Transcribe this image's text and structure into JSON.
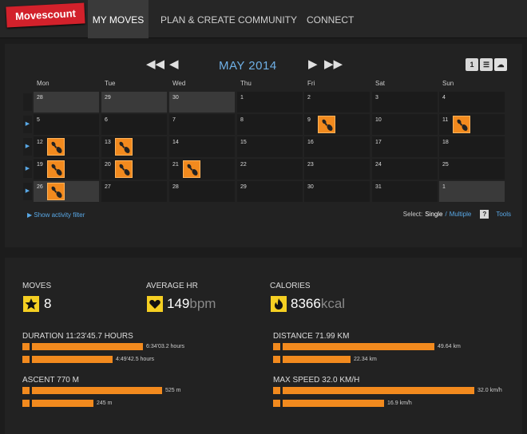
{
  "logo": "Movescount",
  "nav": [
    {
      "label": "MY MOVES",
      "active": true
    },
    {
      "label": "PLAN & CREATE",
      "active": false
    },
    {
      "label": "COMMUNITY",
      "active": false
    },
    {
      "label": "CONNECT",
      "active": false
    }
  ],
  "calendar": {
    "month_title": "MAY 2014",
    "day_headers": [
      "Mon",
      "Tue",
      "Wed",
      "Thu",
      "Fri",
      "Sat",
      "Sun"
    ],
    "weeks": [
      [
        {
          "n": "28",
          "o": true
        },
        {
          "n": "29",
          "o": true
        },
        {
          "n": "30",
          "o": true
        },
        {
          "n": "1"
        },
        {
          "n": "2"
        },
        {
          "n": "3"
        },
        {
          "n": "4"
        }
      ],
      [
        {
          "n": "5"
        },
        {
          "n": "6"
        },
        {
          "n": "7"
        },
        {
          "n": "8"
        },
        {
          "n": "9",
          "m": true
        },
        {
          "n": "10"
        },
        {
          "n": "11",
          "m": true
        }
      ],
      [
        {
          "n": "12",
          "m": true
        },
        {
          "n": "13",
          "m": true
        },
        {
          "n": "14"
        },
        {
          "n": "15"
        },
        {
          "n": "16"
        },
        {
          "n": "17"
        },
        {
          "n": "18"
        }
      ],
      [
        {
          "n": "19",
          "m": true
        },
        {
          "n": "20",
          "m": true
        },
        {
          "n": "21",
          "m": true
        },
        {
          "n": "22"
        },
        {
          "n": "23"
        },
        {
          "n": "24"
        },
        {
          "n": "25"
        }
      ],
      [
        {
          "n": "26",
          "m": true,
          "o": true
        },
        {
          "n": "27"
        },
        {
          "n": "28"
        },
        {
          "n": "29"
        },
        {
          "n": "30"
        },
        {
          "n": "31"
        },
        {
          "n": "1",
          "o": true
        }
      ]
    ],
    "show_filter": "Show activity filter",
    "select_label": "Select:",
    "single": "Single",
    "separator": "/",
    "multiple": "Multiple",
    "help": "?",
    "tools": "Tools",
    "view_icons": [
      "calendar-month-icon",
      "list-icon",
      "cloud-icon"
    ]
  },
  "stats": {
    "moves_title": "MOVES",
    "moves_value": "8",
    "hr_title": "AVERAGE HR",
    "hr_value": "149",
    "hr_unit": "bpm",
    "cal_title": "CALORIES",
    "cal_value": "8366",
    "cal_unit": "kcal",
    "duration": {
      "title": "DURATION 11:23'45.7 HOURS",
      "bars": [
        {
          "label": "6:34'03.2 hours",
          "fraction": 0.58
        },
        {
          "label": "4:49'42.5 hours",
          "fraction": 0.42
        }
      ]
    },
    "distance": {
      "title": "DISTANCE 71.99 KM",
      "bars": [
        {
          "label": "49.64 km",
          "fraction": 0.69
        },
        {
          "label": "22.34 km",
          "fraction": 0.31
        }
      ]
    },
    "ascent": {
      "title": "ASCENT 770 M",
      "bars": [
        {
          "label": "525 m",
          "fraction": 0.68
        },
        {
          "label": "245 m",
          "fraction": 0.32
        }
      ]
    },
    "speed": {
      "title": "MAX SPEED 32.0 KM/H",
      "bars": [
        {
          "label": "32.0 km/h",
          "fraction": 1.0
        },
        {
          "label": "16.9 km/h",
          "fraction": 0.53
        }
      ]
    }
  },
  "colors": {
    "accent": "#f28a1e",
    "link": "#59a8e6",
    "logo": "#d2212b",
    "stat_icon": "#f5cf22"
  }
}
